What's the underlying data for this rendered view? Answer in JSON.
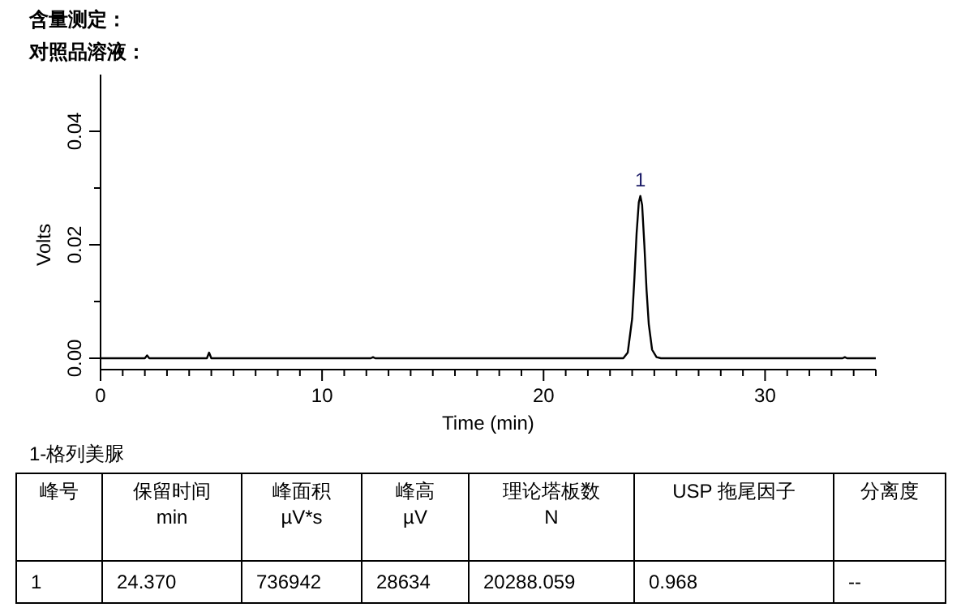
{
  "chart_data": {
    "type": "line",
    "title": "含量测定：",
    "subtitle": "对照品溶液：",
    "xlabel": "Time (min)",
    "ylabel": "Volts",
    "xlim": [
      0,
      35
    ],
    "ylim": [
      -0.002,
      0.05
    ],
    "xticks": [
      0,
      {
        "value": 1,
        "label": null
      },
      {
        "value": 2,
        "label": null
      },
      {
        "value": 3,
        "label": null
      },
      {
        "value": 4,
        "label": null
      },
      {
        "value": 5,
        "label": null
      },
      {
        "value": 6,
        "label": null
      },
      {
        "value": 7,
        "label": null
      },
      {
        "value": 8,
        "label": null
      },
      {
        "value": 9,
        "label": null
      },
      10,
      {
        "value": 11,
        "label": null
      },
      {
        "value": 12,
        "label": null
      },
      {
        "value": 13,
        "label": null
      },
      {
        "value": 14,
        "label": null
      },
      {
        "value": 15,
        "label": null
      },
      {
        "value": 16,
        "label": null
      },
      {
        "value": 17,
        "label": null
      },
      {
        "value": 18,
        "label": null
      },
      {
        "value": 19,
        "label": null
      },
      20,
      {
        "value": 21,
        "label": null
      },
      {
        "value": 22,
        "label": null
      },
      {
        "value": 23,
        "label": null
      },
      {
        "value": 24,
        "label": null
      },
      {
        "value": 25,
        "label": null
      },
      {
        "value": 26,
        "label": null
      },
      {
        "value": 27,
        "label": null
      },
      {
        "value": 28,
        "label": null
      },
      {
        "value": 29,
        "label": null
      },
      30,
      {
        "value": 31,
        "label": null
      },
      {
        "value": 32,
        "label": null
      },
      {
        "value": 33,
        "label": null
      },
      {
        "value": 34,
        "label": null
      },
      {
        "value": 35,
        "label": null
      }
    ],
    "yticks": [
      {
        "value": 0,
        "label": "0.00"
      },
      {
        "value": 0.01,
        "label": null
      },
      {
        "value": 0.02,
        "label": "0.02"
      },
      {
        "value": 0.03,
        "label": null
      },
      {
        "value": 0.04,
        "label": "0.04"
      }
    ],
    "marker": "none",
    "line_style": "solid",
    "series": [
      {
        "color": "#000000",
        "x": [
          0,
          2.0,
          2.1,
          2.2,
          4.8,
          4.9,
          5.0,
          12.2,
          12.3,
          12.4,
          23.6,
          23.8,
          24.0,
          24.1,
          24.2,
          24.3,
          24.37,
          24.45,
          24.55,
          24.65,
          24.75,
          24.9,
          25.1,
          25.3,
          33.5,
          33.6,
          33.7,
          35
        ],
        "values": [
          0,
          0,
          0.0005,
          0,
          0,
          0.001,
          0,
          0,
          0.0002,
          0,
          0,
          0.001,
          0.007,
          0.014,
          0.022,
          0.0275,
          0.0286,
          0.027,
          0.02,
          0.012,
          0.006,
          0.0015,
          0.0002,
          0,
          0,
          0.0002,
          0,
          0
        ]
      }
    ],
    "annotations": [
      {
        "text": "1",
        "x": 24.37,
        "y": 0.0286
      },
      "1-格列美脲",
      "峰号",
      "保留时间",
      "峰面积",
      "峰高",
      "理论塔板数",
      "USP 拖尾因子",
      "分离度",
      "min",
      "µV*s",
      "µV",
      "N",
      "1",
      "24.370",
      "736942",
      "28634",
      "20288.059",
      "0.968",
      "--"
    ]
  }
}
